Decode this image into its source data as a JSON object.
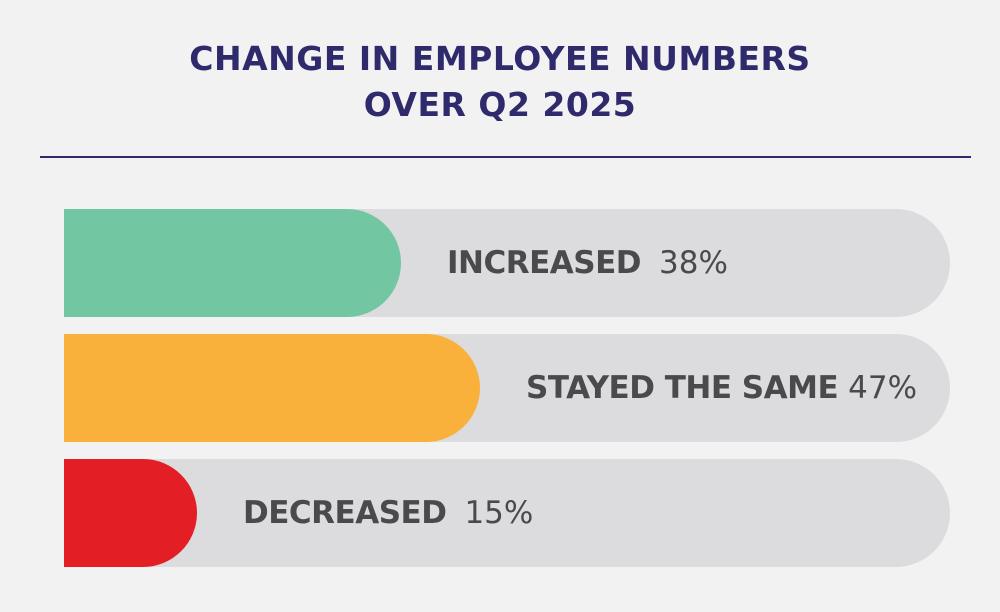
{
  "chart_data": {
    "type": "bar",
    "title": "CHANGE IN EMPLOYEE NUMBERS\nOVER Q2 2025",
    "title_lines": [
      "CHANGE IN EMPLOYEE NUMBERS",
      "OVER Q2 2025"
    ],
    "orientation": "horizontal",
    "categories": [
      "INCREASED",
      "STAYED THE SAME",
      "DECREASED"
    ],
    "values": [
      38,
      47,
      15
    ],
    "value_labels": [
      "38%",
      "47%",
      "15%"
    ],
    "unit": "%",
    "xlim": [
      0,
      100
    ],
    "colors": [
      "#72c6a1",
      "#f9b13c",
      "#e31e25"
    ],
    "track_color": "#dcdcde",
    "grid": false
  },
  "colors": {
    "background": "#f2f2f3",
    "title": "#2e2a6b",
    "divider": "#2e2a6b",
    "label_text": "#4a4a4c"
  }
}
